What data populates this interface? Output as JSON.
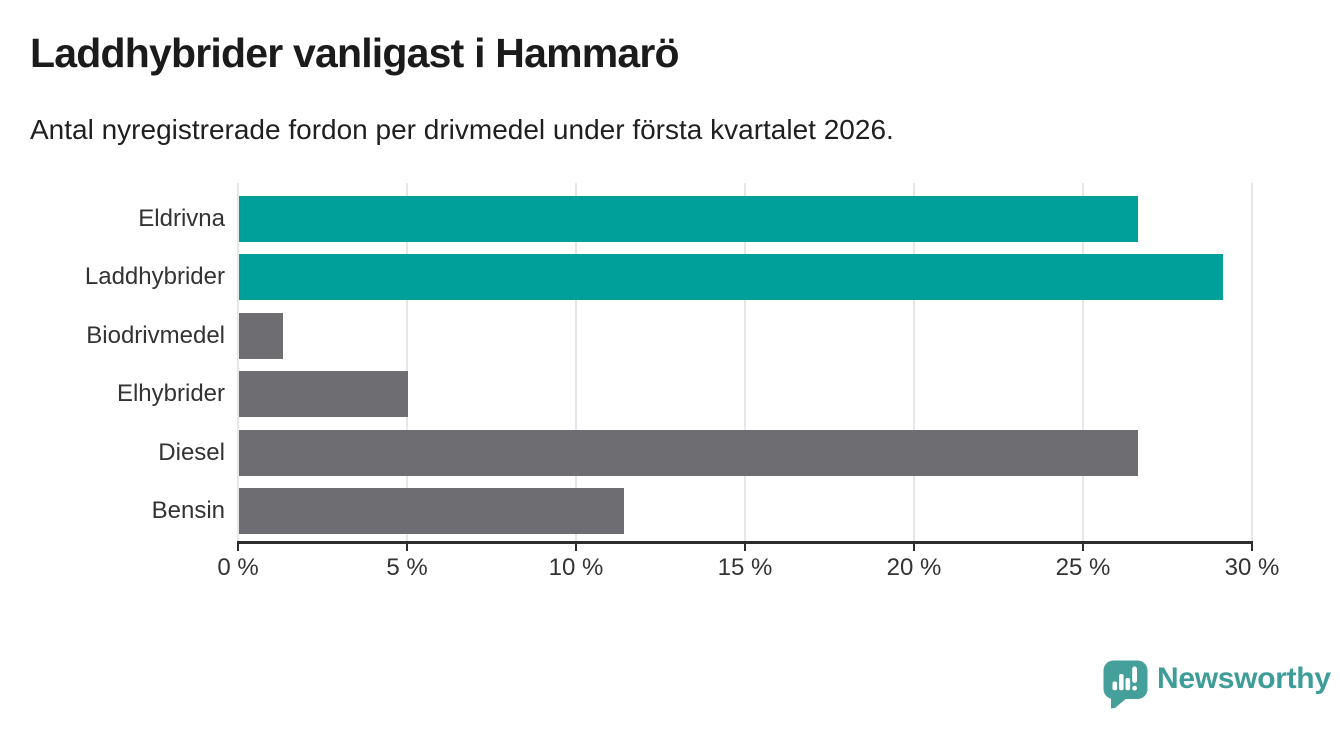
{
  "header": {
    "title": "Laddhybrider vanligast i Hammarö",
    "subtitle": "Antal nyregistrerade fordon per drivmedel under första kvartalet 2026."
  },
  "chart_data": {
    "type": "bar",
    "orientation": "horizontal",
    "title": "Laddhybrider vanligast i Hammarö",
    "subtitle": "Antal nyregistrerade fordon per drivmedel under första kvartalet 2026.",
    "categories": [
      "Eldrivna",
      "Laddhybrider",
      "Biodrivmedel",
      "Elhybrider",
      "Diesel",
      "Bensin"
    ],
    "values": [
      26.6,
      29.1,
      1.3,
      5.0,
      26.6,
      11.4
    ],
    "unit": "%",
    "xlim": [
      0,
      30
    ],
    "x_ticks": [
      0,
      5,
      10,
      15,
      20,
      25,
      30
    ],
    "x_tick_labels": [
      "0 %",
      "5 %",
      "10 %",
      "15 %",
      "20 %",
      "25 %",
      "30 %"
    ],
    "bar_colors": [
      "#00a09a",
      "#00a09a",
      "#6e6e72",
      "#6e6e72",
      "#6e6e72",
      "#6e6e72"
    ],
    "highlight_color": "#00a09a",
    "default_color": "#6e6e72",
    "gridline_color": "#e7e7e7",
    "axis_color": "#2d2d2d",
    "grid": true,
    "legend": false
  },
  "footer": {
    "brand": "Newsworthy",
    "brand_color": "#3f9d99",
    "logo_icon": "speech-bubble-bar-chart-icon"
  }
}
